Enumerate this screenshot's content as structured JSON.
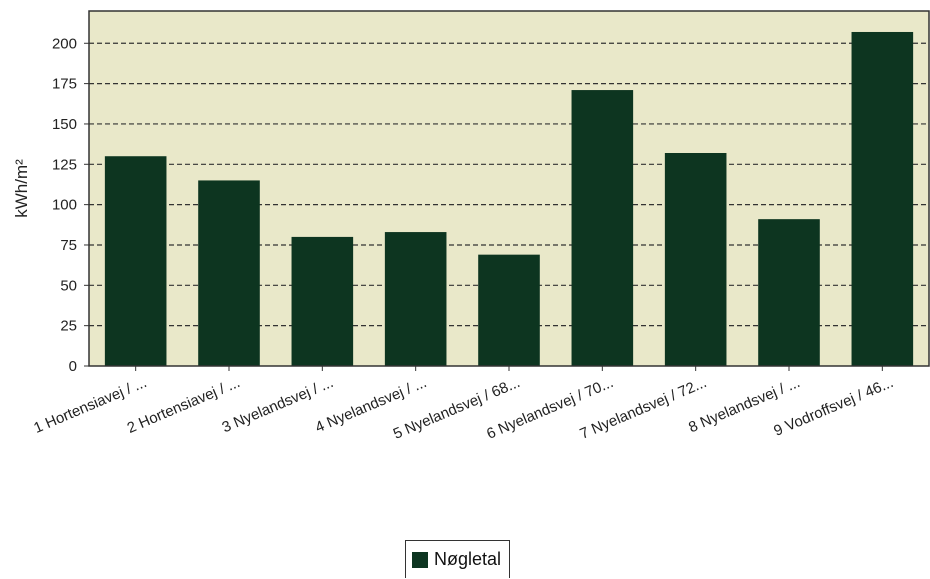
{
  "chart_data": {
    "type": "bar",
    "categories": [
      "1 Hortensiavej / ...",
      "2 Hortensiavej / ...",
      "3 Nyelandsvej / ...",
      "4 Nyelandsvej / ...",
      "5 Nyelandsvej / 68...",
      "6 Nyelandsvej / 70...",
      "7 Nyelandsvej / 72...",
      "8 Nyelandsvej / ...",
      "9 Vodroffsvej / 46..."
    ],
    "series": [
      {
        "name": "Nøgletal",
        "values": [
          130,
          115,
          80,
          83,
          69,
          171,
          132,
          91,
          207
        ]
      }
    ],
    "title": "",
    "xlabel": "",
    "ylabel": "kWh/m²",
    "ylim": [
      0,
      220
    ],
    "yticks": [
      0,
      25,
      50,
      75,
      100,
      125,
      150,
      175,
      200
    ],
    "grid": true,
    "legend_position": "bottom-center",
    "colors": {
      "bar": "#0d3520",
      "plot_background": "#e9e8c9",
      "grid": "#333333",
      "axis": "#333333"
    }
  }
}
